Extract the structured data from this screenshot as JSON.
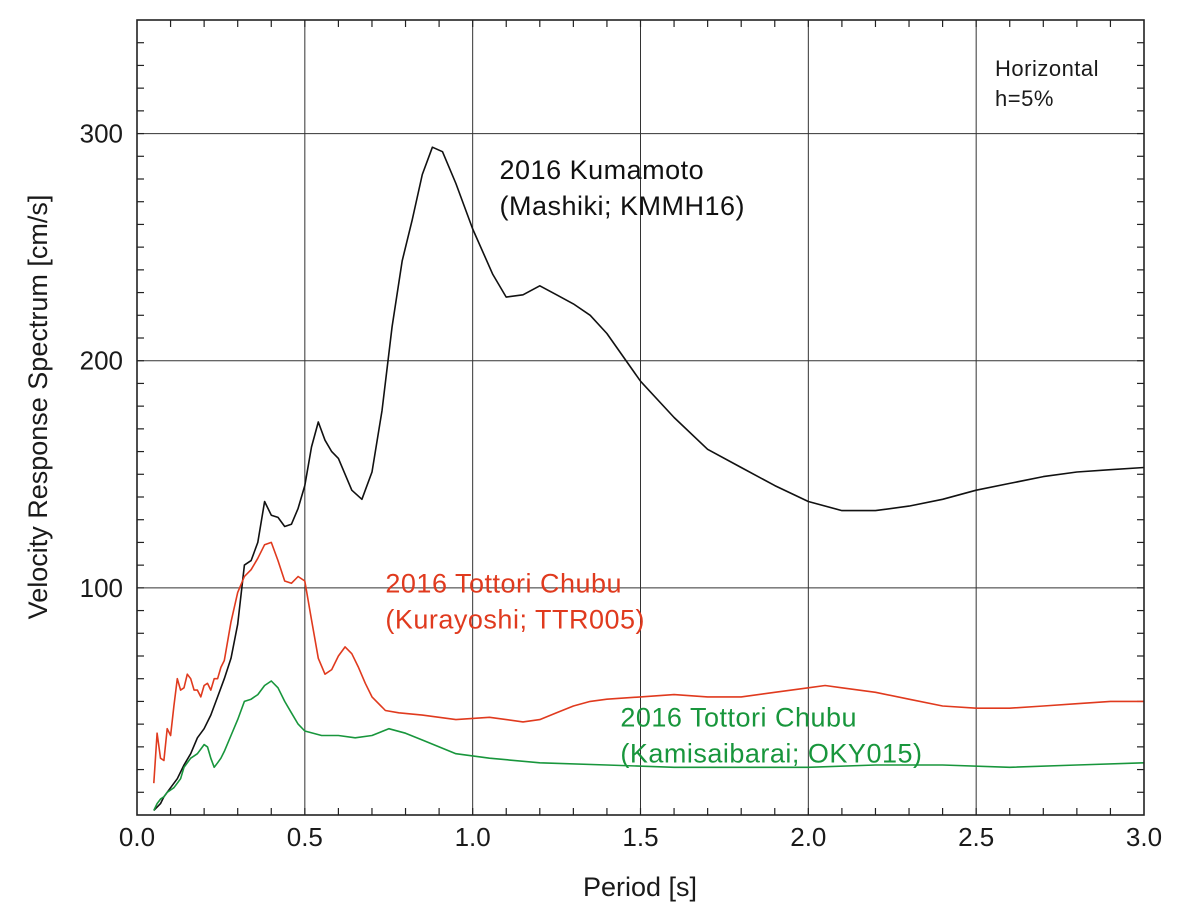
{
  "chart_data": {
    "type": "line",
    "xlabel": "Period [s]",
    "ylabel": "Velocity Response Spectrum [cm/s]",
    "xlim": [
      0,
      3.0
    ],
    "ylim": [
      0,
      350
    ],
    "xticks": [
      0,
      0.5,
      1.0,
      1.5,
      2.0,
      2.5,
      3.0
    ],
    "xtick_labels": [
      "0.0",
      "0.5",
      "1.0",
      "1.5",
      "2.0",
      "2.5",
      "3.0"
    ],
    "yticks": [
      100,
      200,
      300
    ],
    "ytick_labels": [
      "100",
      "200",
      "300"
    ],
    "x_minor_step": 0.1,
    "y_minor_step": 10,
    "grid": true,
    "note": [
      "Horizontal",
      "h=5%"
    ],
    "series": [
      {
        "name": "2016 Kumamoto (Mashiki; KMMH16)",
        "label_lines": [
          "2016 Kumamoto",
          "(Mashiki; KMMH16)"
        ],
        "label_pos": [
          1.08,
          280
        ],
        "color": "#111111",
        "x": [
          0.05,
          0.07,
          0.08,
          0.1,
          0.12,
          0.14,
          0.16,
          0.18,
          0.2,
          0.22,
          0.24,
          0.26,
          0.28,
          0.3,
          0.32,
          0.34,
          0.36,
          0.38,
          0.4,
          0.42,
          0.44,
          0.46,
          0.48,
          0.5,
          0.52,
          0.54,
          0.56,
          0.58,
          0.6,
          0.62,
          0.64,
          0.67,
          0.7,
          0.73,
          0.76,
          0.79,
          0.82,
          0.85,
          0.88,
          0.91,
          0.95,
          1.0,
          1.06,
          1.1,
          1.15,
          1.2,
          1.25,
          1.3,
          1.35,
          1.4,
          1.5,
          1.6,
          1.7,
          1.8,
          1.9,
          2.0,
          2.1,
          2.2,
          2.3,
          2.4,
          2.5,
          2.6,
          2.7,
          2.8,
          2.9,
          3.0
        ],
        "y": [
          2,
          5,
          8,
          12,
          16,
          22,
          27,
          34,
          38,
          44,
          52,
          60,
          69,
          84,
          110,
          112,
          120,
          138,
          132,
          131,
          127,
          128,
          135,
          145,
          162,
          173,
          165,
          160,
          157,
          150,
          143,
          139,
          151,
          178,
          215,
          244,
          262,
          282,
          294,
          292,
          278,
          258,
          238,
          228,
          229,
          233,
          229,
          225,
          220,
          212,
          191,
          175,
          161,
          153,
          145,
          138,
          134,
          134,
          136,
          139,
          143,
          146,
          149,
          151,
          152,
          153
        ]
      },
      {
        "name": "2016 Tottori Chubu (Kurayoshi; TTR005)",
        "label_lines": [
          "2016 Tottori Chubu",
          "(Kurayoshi; TTR005)"
        ],
        "label_pos": [
          0.74,
          98
        ],
        "color": "#e03a1e",
        "x": [
          0.05,
          0.06,
          0.07,
          0.08,
          0.09,
          0.1,
          0.11,
          0.12,
          0.13,
          0.14,
          0.15,
          0.16,
          0.17,
          0.18,
          0.19,
          0.2,
          0.21,
          0.22,
          0.23,
          0.24,
          0.25,
          0.26,
          0.28,
          0.3,
          0.32,
          0.34,
          0.36,
          0.38,
          0.4,
          0.42,
          0.44,
          0.46,
          0.48,
          0.5,
          0.52,
          0.54,
          0.56,
          0.58,
          0.6,
          0.62,
          0.64,
          0.66,
          0.68,
          0.7,
          0.74,
          0.78,
          0.85,
          0.95,
          1.05,
          1.1,
          1.15,
          1.2,
          1.25,
          1.3,
          1.35,
          1.4,
          1.5,
          1.6,
          1.7,
          1.8,
          1.9,
          2.0,
          2.05,
          2.1,
          2.2,
          2.3,
          2.4,
          2.5,
          2.6,
          2.7,
          2.8,
          2.9,
          3.0
        ],
        "y": [
          14,
          36,
          25,
          24,
          38,
          35,
          48,
          60,
          55,
          56,
          62,
          60,
          55,
          55,
          52,
          57,
          58,
          55,
          60,
          60,
          65,
          68,
          85,
          98,
          105,
          108,
          113,
          119,
          120,
          112,
          103,
          102,
          105,
          103,
          86,
          69,
          62,
          64,
          70,
          74,
          71,
          65,
          58,
          52,
          46,
          45,
          44,
          42,
          43,
          42,
          41,
          42,
          45,
          48,
          50,
          51,
          52,
          53,
          52,
          52,
          54,
          56,
          57,
          56,
          54,
          51,
          48,
          47,
          47,
          48,
          49,
          50,
          50
        ]
      },
      {
        "name": "2016 Tottori Chubu (Kamisaibarai; OKY015)",
        "label_lines": [
          "2016 Tottori Chubu",
          "(Kamisaibarai; OKY015)"
        ],
        "label_pos": [
          1.44,
          39
        ],
        "color": "#18963c",
        "x": [
          0.05,
          0.06,
          0.07,
          0.08,
          0.09,
          0.1,
          0.11,
          0.12,
          0.13,
          0.14,
          0.15,
          0.16,
          0.17,
          0.18,
          0.19,
          0.2,
          0.21,
          0.22,
          0.23,
          0.24,
          0.25,
          0.26,
          0.28,
          0.3,
          0.32,
          0.34,
          0.36,
          0.38,
          0.4,
          0.42,
          0.44,
          0.46,
          0.48,
          0.5,
          0.55,
          0.6,
          0.65,
          0.7,
          0.75,
          0.8,
          0.85,
          0.95,
          1.05,
          1.2,
          1.4,
          1.6,
          1.8,
          2.0,
          2.2,
          2.4,
          2.6,
          2.8,
          3.0
        ],
        "y": [
          2,
          5,
          7,
          8,
          10,
          11,
          12,
          14,
          16,
          21,
          23,
          25,
          26,
          27,
          29,
          31,
          30,
          25,
          21,
          23,
          25,
          28,
          35,
          42,
          50,
          51,
          53,
          57,
          59,
          56,
          50,
          45,
          40,
          37,
          35,
          35,
          34,
          35,
          38,
          36,
          33,
          27,
          25,
          23,
          22,
          21,
          21,
          21,
          22,
          22,
          21,
          22,
          23
        ]
      }
    ]
  }
}
